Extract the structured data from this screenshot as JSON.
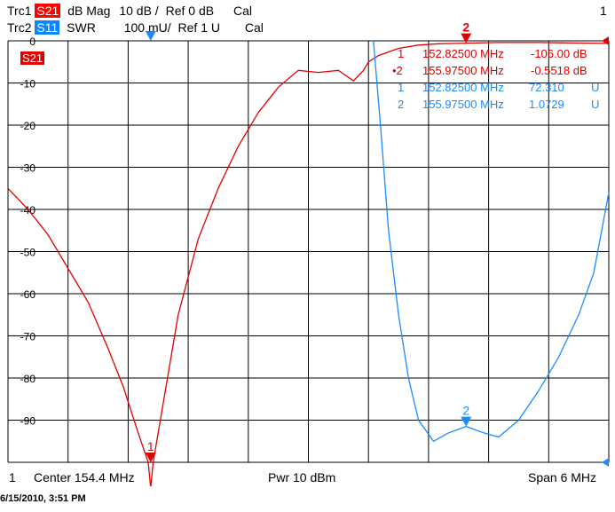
{
  "header": {
    "trc1": {
      "label": "Trc1",
      "param": "S21",
      "format": "dB Mag",
      "scale": "10 dB /",
      "ref": "Ref 0 dB",
      "cal": "Cal"
    },
    "trc2": {
      "label": "Trc2",
      "param": "S11",
      "format": "SWR",
      "scale": "100 mU/",
      "ref": "Ref 1 U",
      "cal": "Cal"
    },
    "channel": "1"
  },
  "trace_tag": "S21",
  "footer": {
    "channel": "1",
    "center": "Center  154.4 MHz",
    "power": "Pwr  10 dBm",
    "span": "Span  6 MHz"
  },
  "timestamp": "6/15/2010, 3:51 PM",
  "markers": [
    {
      "num": "1",
      "freq": "152.82500 MHz",
      "value": "-106.00 dB",
      "color": "#e00000",
      "active": false
    },
    {
      "num": "2",
      "freq": "155.97500 MHz",
      "value": "-0.5518 dB",
      "color": "#e00000",
      "active": true
    },
    {
      "num": "1",
      "freq": "152.82500 MHz",
      "value": "72.310",
      "unit": "U",
      "color": "#1a8cff",
      "active": false
    },
    {
      "num": "2",
      "freq": "155.97500 MHz",
      "value": "1.0729",
      "unit": "U",
      "color": "#1a8cff",
      "active": false
    }
  ],
  "colors": {
    "s21": "#e00000",
    "s11": "#1a8cff",
    "grid": "#000000"
  },
  "chart_data": {
    "type": "line",
    "xlabel": "",
    "ylabel": "",
    "xlim": [
      151.4,
      157.4
    ],
    "ylim": [
      -100,
      0
    ],
    "yticks": [
      0,
      -10,
      -20,
      -30,
      -40,
      -50,
      -60,
      -70,
      -80,
      -90
    ],
    "grid": true,
    "series": [
      {
        "name": "S21",
        "unit": "dB",
        "color": "#e00000",
        "x": [
          151.4,
          151.6,
          151.8,
          152.0,
          152.2,
          152.4,
          152.55,
          152.7,
          152.8,
          152.825,
          152.85,
          152.95,
          153.1,
          153.3,
          153.5,
          153.7,
          153.9,
          154.1,
          154.3,
          154.5,
          154.7,
          154.85,
          154.95,
          155.0,
          155.1,
          155.3,
          155.5,
          155.7,
          155.975,
          156.3,
          156.7,
          157.0,
          157.4
        ],
        "y": [
          -35,
          -40,
          -46,
          -54,
          -62,
          -73,
          -82,
          -93,
          -100,
          -106,
          -100,
          -86,
          -65,
          -47,
          -35,
          -25,
          -17,
          -11,
          -7,
          -7.5,
          -7,
          -9.5,
          -7,
          -5,
          -3.5,
          -1.8,
          -1,
          -0.7,
          -0.55,
          -0.4,
          -0.4,
          -0.5,
          -0.6
        ]
      },
      {
        "name": "S11",
        "unit": "SWR",
        "scale": "100 mU/",
        "ref": 1,
        "color": "#1a8cff",
        "x": [
          155.05,
          155.12,
          155.2,
          155.3,
          155.4,
          155.5,
          155.65,
          155.8,
          155.975,
          156.15,
          156.3,
          156.5,
          156.7,
          156.9,
          157.1,
          157.25,
          157.4
        ],
        "y": [
          0,
          -20,
          -45,
          -65,
          -80,
          -90,
          -95,
          -93,
          -91.5,
          -93,
          -94,
          -90,
          -83,
          -75,
          -65,
          -55,
          -36
        ]
      }
    ],
    "marker_points": [
      {
        "num": "1",
        "trace": "S21",
        "x": 152.825,
        "y": -100
      },
      {
        "num": "2",
        "trace": "S21",
        "x": 155.975,
        "y": -0.55
      },
      {
        "num": "1",
        "trace": "S11",
        "x": 152.825,
        "y": 0
      },
      {
        "num": "2",
        "trace": "S11",
        "x": 155.975,
        "y": -91.5
      }
    ]
  }
}
